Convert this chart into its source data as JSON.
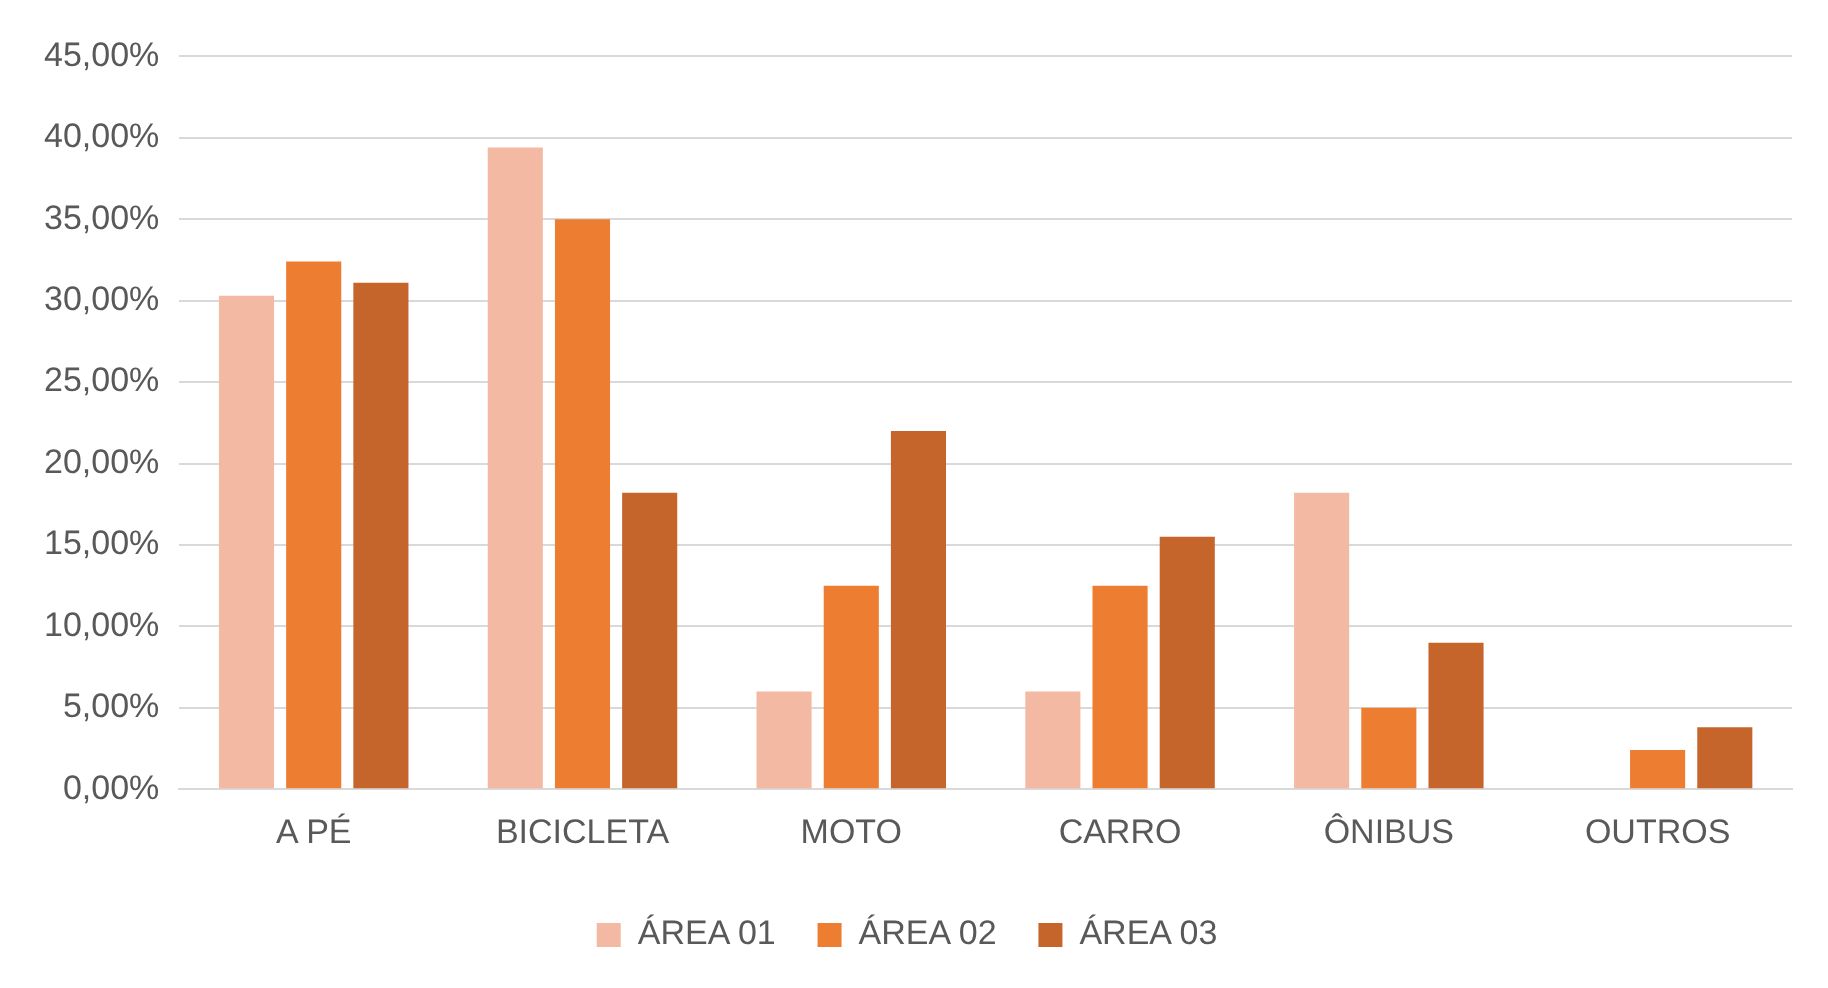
{
  "chart_data": {
    "type": "bar",
    "categories": [
      "A PÉ",
      "BICICLETA",
      "MOTO",
      "CARRO",
      "ÔNIBUS",
      "OUTROS"
    ],
    "series": [
      {
        "name": "ÁREA 01",
        "color": "#f4b9a3",
        "values": [
          30.3,
          39.4,
          6.0,
          6.0,
          18.2,
          0
        ]
      },
      {
        "name": "ÁREA 02",
        "color": "#ed7d31",
        "values": [
          32.4,
          35.0,
          12.5,
          12.5,
          5.0,
          2.4
        ]
      },
      {
        "name": "ÁREA 03",
        "color": "#c5652b",
        "values": [
          31.1,
          18.2,
          22.0,
          15.5,
          9.0,
          3.8
        ]
      }
    ],
    "ylim": [
      0,
      45
    ],
    "yticks": [
      {
        "value": 0,
        "label": "0,00%"
      },
      {
        "value": 5,
        "label": "5,00%"
      },
      {
        "value": 10,
        "label": "10,00%"
      },
      {
        "value": 15,
        "label": "15,00%"
      },
      {
        "value": 20,
        "label": "20,00%"
      },
      {
        "value": 25,
        "label": "25,00%"
      },
      {
        "value": 30,
        "label": "30,00%"
      },
      {
        "value": 35,
        "label": "35,00%"
      },
      {
        "value": 40,
        "label": "40,00%"
      },
      {
        "value": 45,
        "label": "45,00%"
      }
    ],
    "grid": "y",
    "legend": "bottom"
  }
}
